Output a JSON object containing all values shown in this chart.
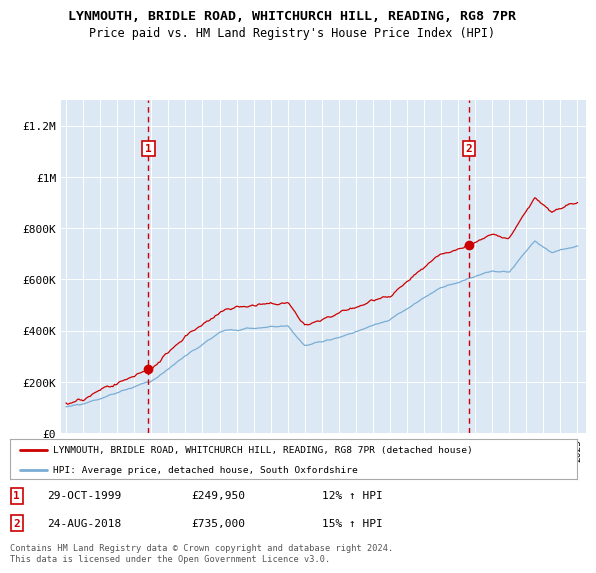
{
  "title": "LYNMOUTH, BRIDLE ROAD, WHITCHURCH HILL, READING, RG8 7PR",
  "subtitle": "Price paid vs. HM Land Registry's House Price Index (HPI)",
  "ylabel_ticks": [
    "£0",
    "£200K",
    "£400K",
    "£600K",
    "£800K",
    "£1M",
    "£1.2M"
  ],
  "ytick_values": [
    0,
    200000,
    400000,
    600000,
    800000,
    1000000,
    1200000
  ],
  "ylim": [
    0,
    1300000
  ],
  "xlim_start": 1994.7,
  "xlim_end": 2025.5,
  "bg_color": "#dce9f5",
  "grid_color": "#ffffff",
  "red_color": "#cc0000",
  "blue_color": "#7badd4",
  "marker1_x": 1999.83,
  "marker1_y": 249950,
  "marker2_x": 2018.65,
  "marker2_y": 735000,
  "legend_label_red": "LYNMOUTH, BRIDLE ROAD, WHITCHURCH HILL, READING, RG8 7PR (detached house)",
  "legend_label_blue": "HPI: Average price, detached house, South Oxfordshire",
  "annotation1_date": "29-OCT-1999",
  "annotation1_price": "£249,950",
  "annotation1_hpi": "12% ↑ HPI",
  "annotation2_date": "24-AUG-2018",
  "annotation2_price": "£735,000",
  "annotation2_hpi": "15% ↑ HPI",
  "footer": "Contains HM Land Registry data © Crown copyright and database right 2024.\nThis data is licensed under the Open Government Licence v3.0."
}
